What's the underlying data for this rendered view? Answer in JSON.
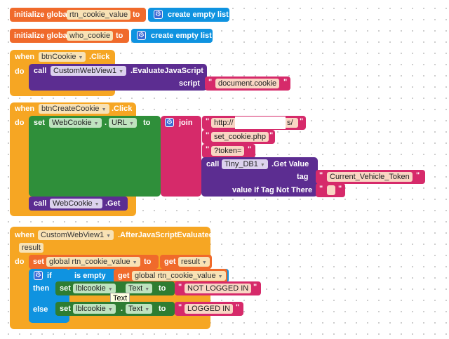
{
  "blocks": {
    "init1": {
      "kw": "initialize global",
      "name": "rtn_cookie_value",
      "to": "to",
      "value": "create empty list"
    },
    "init2": {
      "kw": "initialize global",
      "name": "who_cookie",
      "to": "to",
      "value": "create empty list"
    },
    "ev1": {
      "when": "when",
      "component": "btnCookie",
      "event": ".Click",
      "do": "do",
      "call": "call",
      "target": "CustomWebView1",
      "method": ".EvaluateJavaScript",
      "param": "script",
      "string": "document.cookie"
    },
    "ev2": {
      "when": "when",
      "component": "btnCreateCookie",
      "event": ".Click",
      "do": "do",
      "set": "set",
      "target": "WebCookie",
      "dot": ".",
      "prop": "URL",
      "to": "to",
      "join": "join",
      "s1": "http://",
      "s1_tail": "s/",
      "s2": "set_cookie.php",
      "s3": "?token=",
      "call": "call",
      "db": "Tiny_DB1",
      "method": ".Get Value",
      "tag_label": "tag",
      "tag_value": "Current_Vehicle_Token",
      "ifnot_label": "value If Tag Not There",
      "ifnot_value": "",
      "call2": "call",
      "target2": "WebCookie",
      "method2": ".Get"
    },
    "ev3": {
      "when": "when",
      "component": "CustomWebView1",
      "event": ".AfterJavaScriptEvaluated",
      "param": "result",
      "do": "do",
      "set": "set",
      "var": "global rtn_cookie_value",
      "to": "to",
      "get": "get",
      "getvar": "result",
      "if": "if",
      "is_empty": "is empty",
      "get2": "get",
      "getvar2": "global rtn_cookie_value",
      "then": "then",
      "set_a": "set",
      "lbl_a": "lblcookie",
      "prop_a": "Text",
      "to_a": "to",
      "str_a": "NOT LOGGED IN",
      "else": "else",
      "set_b": "set",
      "lbl_b": "lblcookie",
      "dot_b": ".",
      "prop_b": "Text",
      "to_b": "to",
      "str_b": "LOGGED IN"
    }
  },
  "tooltip": "Text",
  "colors": {
    "events": "#f6a623",
    "variables": "#f06a2b",
    "lists": "#0f93e0",
    "components": "#5c2d91",
    "setters": "#2f8f3a",
    "text": "#d62a6a"
  }
}
